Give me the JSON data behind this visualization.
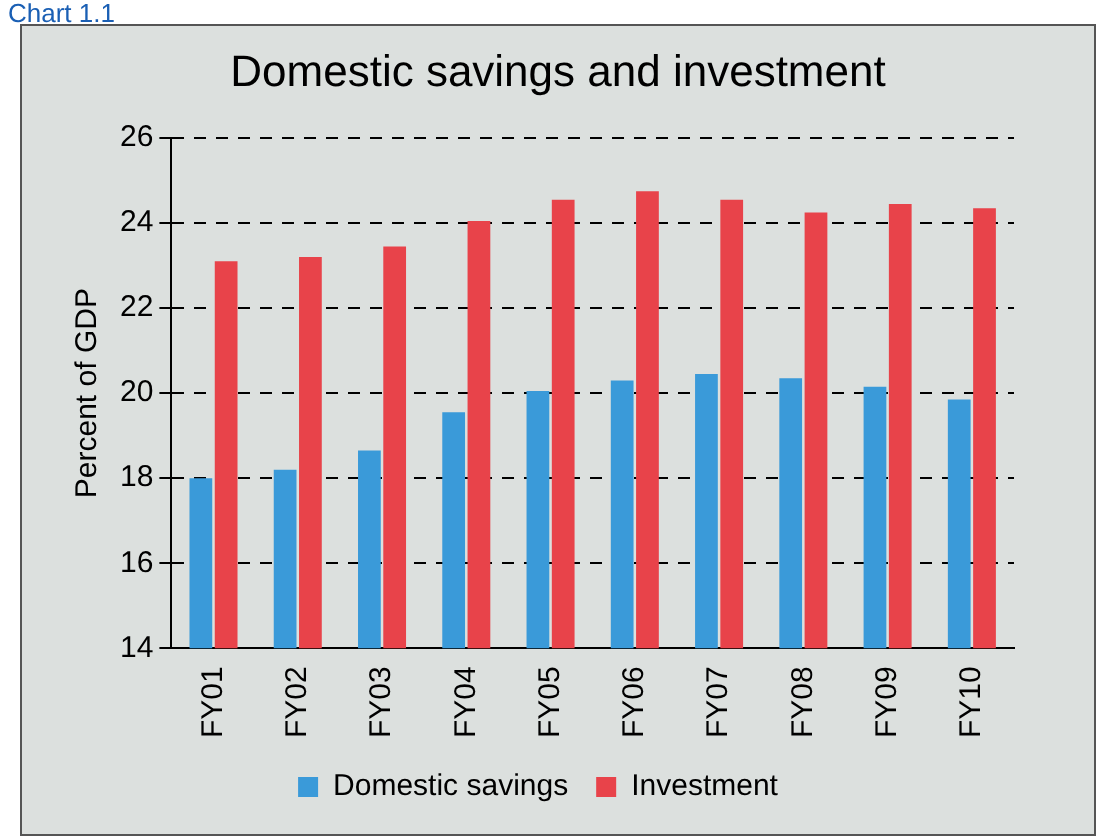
{
  "chart_data": {
    "type": "bar",
    "title": "Domestic savings and investment",
    "ylabel": "Percent of GDP",
    "annotations": [
      "Chart 1.1"
    ],
    "categories": [
      "FY01",
      "FY02",
      "FY03",
      "FY04",
      "FY05",
      "FY06",
      "FY07",
      "FY08",
      "FY09",
      "FY10"
    ],
    "series": [
      {
        "name": "Domestic savings",
        "color": "#3a9ad9",
        "values": [
          18.0,
          18.2,
          18.65,
          19.55,
          20.05,
          20.3,
          20.45,
          20.35,
          20.15,
          19.85
        ]
      },
      {
        "name": "Investment",
        "color": "#e8434a",
        "values": [
          23.1,
          23.2,
          23.45,
          24.05,
          24.55,
          24.75,
          24.55,
          24.25,
          24.45,
          24.35
        ]
      }
    ],
    "ylim": [
      14,
      26
    ],
    "yticks": [
      14,
      16,
      18,
      20,
      22,
      24,
      26
    ],
    "grid": "y",
    "legend": "bottom"
  }
}
